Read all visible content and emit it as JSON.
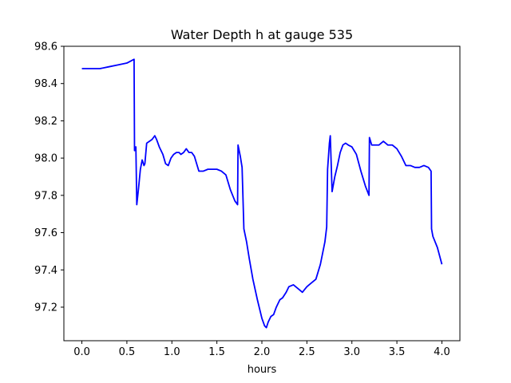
{
  "chart_data": {
    "type": "line",
    "title": "Water Depth h at gauge 535",
    "xlabel": "hours",
    "ylabel": "",
    "xlim": [
      -0.2,
      4.2
    ],
    "ylim": [
      97.02,
      98.6
    ],
    "xticks": [
      0.0,
      0.5,
      1.0,
      1.5,
      2.0,
      2.5,
      3.0,
      3.5,
      4.0
    ],
    "xtick_labels": [
      "0.0",
      "0.5",
      "1.0",
      "1.5",
      "2.0",
      "2.5",
      "3.0",
      "3.5",
      "4.0"
    ],
    "yticks": [
      97.2,
      97.4,
      97.6,
      97.8,
      98.0,
      98.2,
      98.4,
      98.6
    ],
    "ytick_labels": [
      "97.2",
      "97.4",
      "97.6",
      "97.8",
      "98.0",
      "98.2",
      "98.4",
      "98.6"
    ],
    "grid": false,
    "series": [
      {
        "color": "#0000ff",
        "x": [
          0.0,
          0.1,
          0.2,
          0.3,
          0.4,
          0.5,
          0.58,
          0.585,
          0.6,
          0.61,
          0.63,
          0.65,
          0.67,
          0.69,
          0.7,
          0.72,
          0.75,
          0.78,
          0.81,
          0.83,
          0.86,
          0.9,
          0.93,
          0.96,
          0.99,
          1.02,
          1.05,
          1.08,
          1.1,
          1.13,
          1.16,
          1.19,
          1.22,
          1.25,
          1.3,
          1.35,
          1.4,
          1.45,
          1.5,
          1.55,
          1.6,
          1.65,
          1.7,
          1.73,
          1.735,
          1.76,
          1.78,
          1.8,
          1.83,
          1.86,
          1.9,
          1.95,
          2.0,
          2.03,
          2.05,
          2.07,
          2.1,
          2.13,
          2.16,
          2.2,
          2.23,
          2.27,
          2.3,
          2.35,
          2.4,
          2.45,
          2.5,
          2.55,
          2.6,
          2.65,
          2.7,
          2.72,
          2.73,
          2.75,
          2.76,
          2.78,
          2.81,
          2.84,
          2.87,
          2.9,
          2.93,
          2.96,
          3.0,
          3.05,
          3.1,
          3.15,
          3.19,
          3.195,
          3.22,
          3.25,
          3.3,
          3.35,
          3.4,
          3.45,
          3.5,
          3.55,
          3.6,
          3.65,
          3.7,
          3.75,
          3.8,
          3.85,
          3.88,
          3.885,
          3.9,
          3.95,
          4.0
        ],
        "y": [
          98.48,
          98.48,
          98.48,
          98.49,
          98.5,
          98.51,
          98.53,
          98.04,
          98.06,
          97.75,
          97.84,
          97.94,
          97.99,
          97.96,
          97.97,
          98.08,
          98.09,
          98.1,
          98.12,
          98.1,
          98.06,
          98.02,
          97.97,
          97.96,
          98.0,
          98.02,
          98.03,
          98.03,
          98.02,
          98.03,
          98.05,
          98.03,
          98.03,
          98.01,
          97.93,
          97.93,
          97.94,
          97.94,
          97.94,
          97.93,
          97.91,
          97.83,
          97.77,
          97.75,
          98.07,
          98.01,
          97.95,
          97.62,
          97.55,
          97.46,
          97.35,
          97.24,
          97.14,
          97.1,
          97.09,
          97.12,
          97.15,
          97.16,
          97.2,
          97.24,
          97.25,
          97.28,
          97.31,
          97.32,
          97.3,
          97.28,
          97.31,
          97.33,
          97.35,
          97.43,
          97.55,
          97.63,
          97.94,
          98.08,
          98.12,
          97.82,
          97.9,
          97.96,
          98.03,
          98.07,
          98.08,
          98.07,
          98.06,
          98.02,
          97.93,
          97.85,
          97.8,
          98.11,
          98.07,
          98.07,
          98.07,
          98.09,
          98.07,
          98.07,
          98.05,
          98.01,
          97.96,
          97.96,
          97.95,
          97.95,
          97.96,
          97.95,
          97.93,
          97.62,
          97.58,
          97.52,
          97.43
        ]
      }
    ]
  }
}
